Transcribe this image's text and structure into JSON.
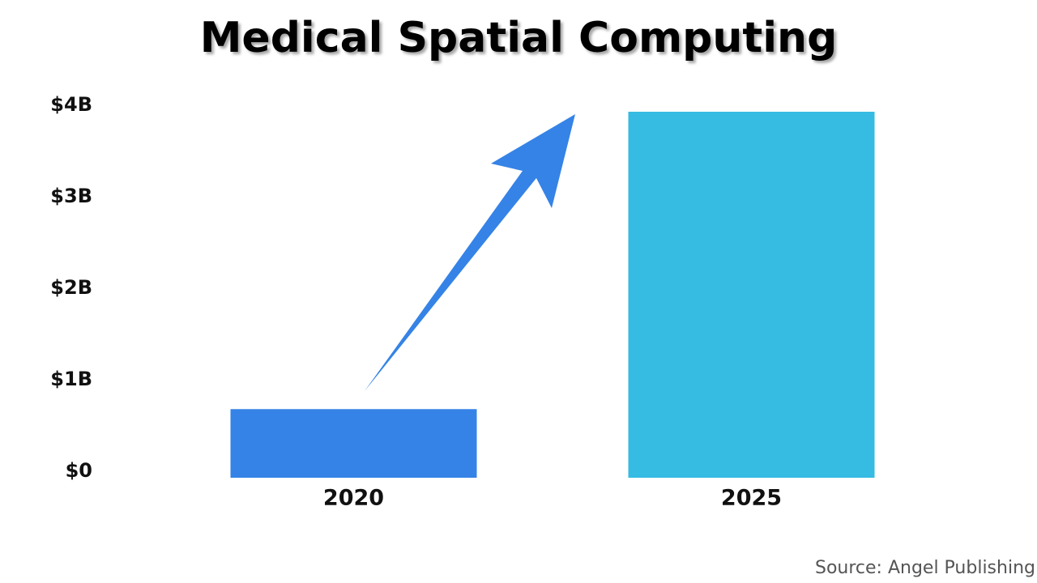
{
  "chart_data": {
    "type": "bar",
    "title": "Medical Spatial Computing",
    "categories": [
      "2020",
      "2025"
    ],
    "values": [
      0.75,
      4.0
    ],
    "colors": [
      "#3583e6",
      "#36bbe3"
    ],
    "ylim": [
      0,
      4
    ],
    "yticks": [
      {
        "value": 0,
        "label": "$0"
      },
      {
        "value": 1,
        "label": "$1B"
      },
      {
        "value": 2,
        "label": "$2B"
      },
      {
        "value": 3,
        "label": "$3B"
      },
      {
        "value": 4,
        "label": "$4B"
      }
    ],
    "grid": false,
    "source": "Source: Angel Publishing"
  }
}
